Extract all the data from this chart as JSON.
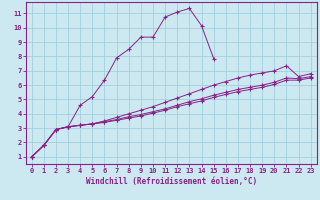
{
  "title": "",
  "xlabel": "Windchill (Refroidissement éolien,°C)",
  "ylabel": "",
  "background_color": "#cce8f0",
  "grid_color": "#99ccdd",
  "line_color": "#882288",
  "xlim": [
    -0.5,
    23.5
  ],
  "ylim": [
    0.5,
    11.8
  ],
  "xticks": [
    0,
    1,
    2,
    3,
    4,
    5,
    6,
    7,
    8,
    9,
    10,
    11,
    12,
    13,
    14,
    15,
    16,
    17,
    18,
    19,
    20,
    21,
    22,
    23
  ],
  "yticks": [
    1,
    2,
    3,
    4,
    5,
    6,
    7,
    8,
    9,
    10,
    11
  ],
  "series": [
    {
      "x": [
        0,
        1,
        2,
        3,
        4,
        5,
        6,
        7,
        8,
        9,
        10,
        11,
        12,
        13,
        14,
        15,
        16,
        17,
        18,
        19,
        20,
        21,
        22,
        23
      ],
      "y": [
        1.0,
        1.8,
        2.9,
        3.1,
        4.6,
        5.2,
        6.35,
        7.9,
        8.5,
        9.35,
        9.35,
        10.75,
        11.1,
        11.35,
        10.15,
        7.85,
        null,
        null,
        null,
        null,
        null,
        null,
        null,
        null
      ]
    },
    {
      "x": [
        0,
        1,
        2,
        3,
        4,
        5,
        6,
        7,
        8,
        9,
        10,
        11,
        12,
        13,
        14,
        15,
        16,
        17,
        18,
        19,
        20,
        21,
        22,
        23
      ],
      "y": [
        1.0,
        1.8,
        2.9,
        3.1,
        3.2,
        3.3,
        3.5,
        3.75,
        4.0,
        4.25,
        4.5,
        4.8,
        5.1,
        5.4,
        5.7,
        6.0,
        6.25,
        6.5,
        6.7,
        6.85,
        7.0,
        7.35,
        6.6,
        6.8
      ]
    },
    {
      "x": [
        0,
        1,
        2,
        3,
        4,
        5,
        6,
        7,
        8,
        9,
        10,
        11,
        12,
        13,
        14,
        15,
        16,
        17,
        18,
        19,
        20,
        21,
        22,
        23
      ],
      "y": [
        1.0,
        1.8,
        2.9,
        3.1,
        3.2,
        3.3,
        3.45,
        3.6,
        3.8,
        3.95,
        4.15,
        4.35,
        4.6,
        4.85,
        5.05,
        5.3,
        5.5,
        5.7,
        5.85,
        6.0,
        6.2,
        6.5,
        6.45,
        6.6
      ]
    },
    {
      "x": [
        0,
        1,
        2,
        3,
        4,
        5,
        6,
        7,
        8,
        9,
        10,
        11,
        12,
        13,
        14,
        15,
        16,
        17,
        18,
        19,
        20,
        21,
        22,
        23
      ],
      "y": [
        1.0,
        1.8,
        2.9,
        3.1,
        3.2,
        3.3,
        3.4,
        3.55,
        3.7,
        3.85,
        4.05,
        4.25,
        4.5,
        4.7,
        4.9,
        5.15,
        5.35,
        5.55,
        5.7,
        5.85,
        6.05,
        6.35,
        6.35,
        6.5
      ]
    }
  ]
}
